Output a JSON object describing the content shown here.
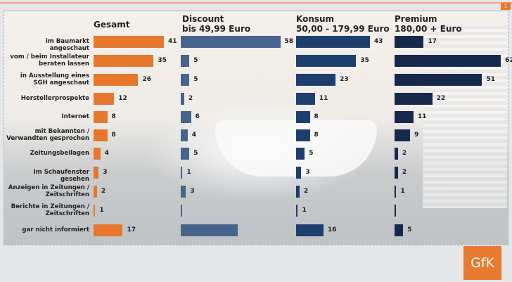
{
  "page_number": "1",
  "logo": "GfK",
  "chart_data": {
    "type": "bar",
    "orientation": "horizontal",
    "categories": [
      "im Baumarkt angeschaut",
      "vom / beim Installateur beraten lassen",
      "in Ausstellung eines SGH angeschaut",
      "Herstellerprospekte",
      "Internet",
      "mit Bekannten / Verwandten gesprochen",
      "Zeitungsbeilagen",
      "Im Schaufenster gesehen",
      "Anzeigen in Zeitungen / Zeitschriften",
      "Berichte in Zeitungen / Zeitschriften",
      "gar nicht informiert"
    ],
    "series": [
      {
        "name": "Gesamt",
        "color": "#e8772e",
        "values": [
          41,
          35,
          26,
          12,
          8,
          8,
          4,
          3,
          2,
          1,
          17
        ]
      },
      {
        "name": "Discount\nbis 49,99 Euro",
        "color": "#46648c",
        "values": [
          58,
          5,
          5,
          2,
          6,
          4,
          5,
          1,
          3,
          0,
          33
        ]
      },
      {
        "name": "Konsum\n50,00 - 179,99 Euro",
        "color": "#1e3f6e",
        "values": [
          43,
          35,
          23,
          11,
          8,
          8,
          5,
          3,
          2,
          1,
          16
        ]
      },
      {
        "name": "Premium\n180,00 + Euro",
        "color": "#16294a",
        "values": [
          17,
          62,
          51,
          22,
          11,
          9,
          2,
          2,
          1,
          0,
          5
        ]
      }
    ],
    "value_labels": [
      [
        "41",
        "35",
        "26",
        "12",
        "8",
        "8",
        "4",
        "3",
        "2",
        "1",
        "17"
      ],
      [
        "58",
        "5",
        "5",
        "2",
        "6",
        "4",
        "5",
        "1",
        "3",
        "",
        ""
      ],
      [
        "43",
        "35",
        "23",
        "11",
        "8",
        "8",
        "5",
        "3",
        "2",
        "1",
        "16"
      ],
      [
        "17",
        "62",
        "51",
        "22",
        "11",
        "9",
        "2",
        "2",
        "1",
        "",
        "5"
      ]
    ]
  }
}
